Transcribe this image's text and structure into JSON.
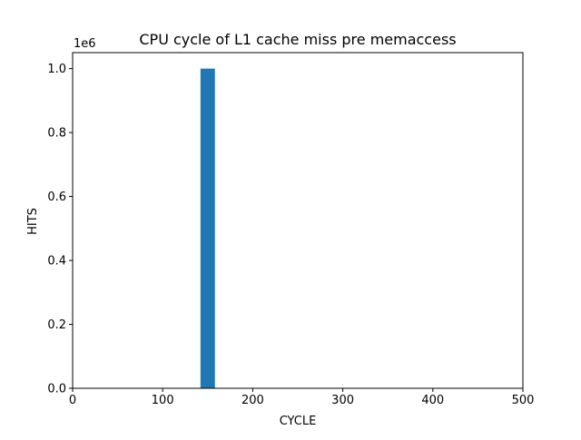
{
  "chart_data": {
    "type": "bar",
    "title": "CPU cycle of L1 cache miss pre memaccess",
    "xlabel": "CYCLE",
    "ylabel": "HITS",
    "offset_text": "1e6",
    "xlim": [
      0,
      500
    ],
    "ylim": [
      0,
      1.05
    ],
    "xticks": [
      0,
      100,
      200,
      300,
      400,
      500
    ],
    "xtick_labels": [
      "0",
      "100",
      "200",
      "300",
      "400",
      "500"
    ],
    "yticks": [
      0.0,
      0.2,
      0.4,
      0.6,
      0.8,
      1.0
    ],
    "ytick_labels": [
      "0.0",
      "0.2",
      "0.4",
      "0.6",
      "0.8",
      "1.0"
    ],
    "grid": false,
    "bars": [
      {
        "x0": 142,
        "x1": 158,
        "value": 1.0
      }
    ],
    "bar_color": "#1f77b4"
  }
}
